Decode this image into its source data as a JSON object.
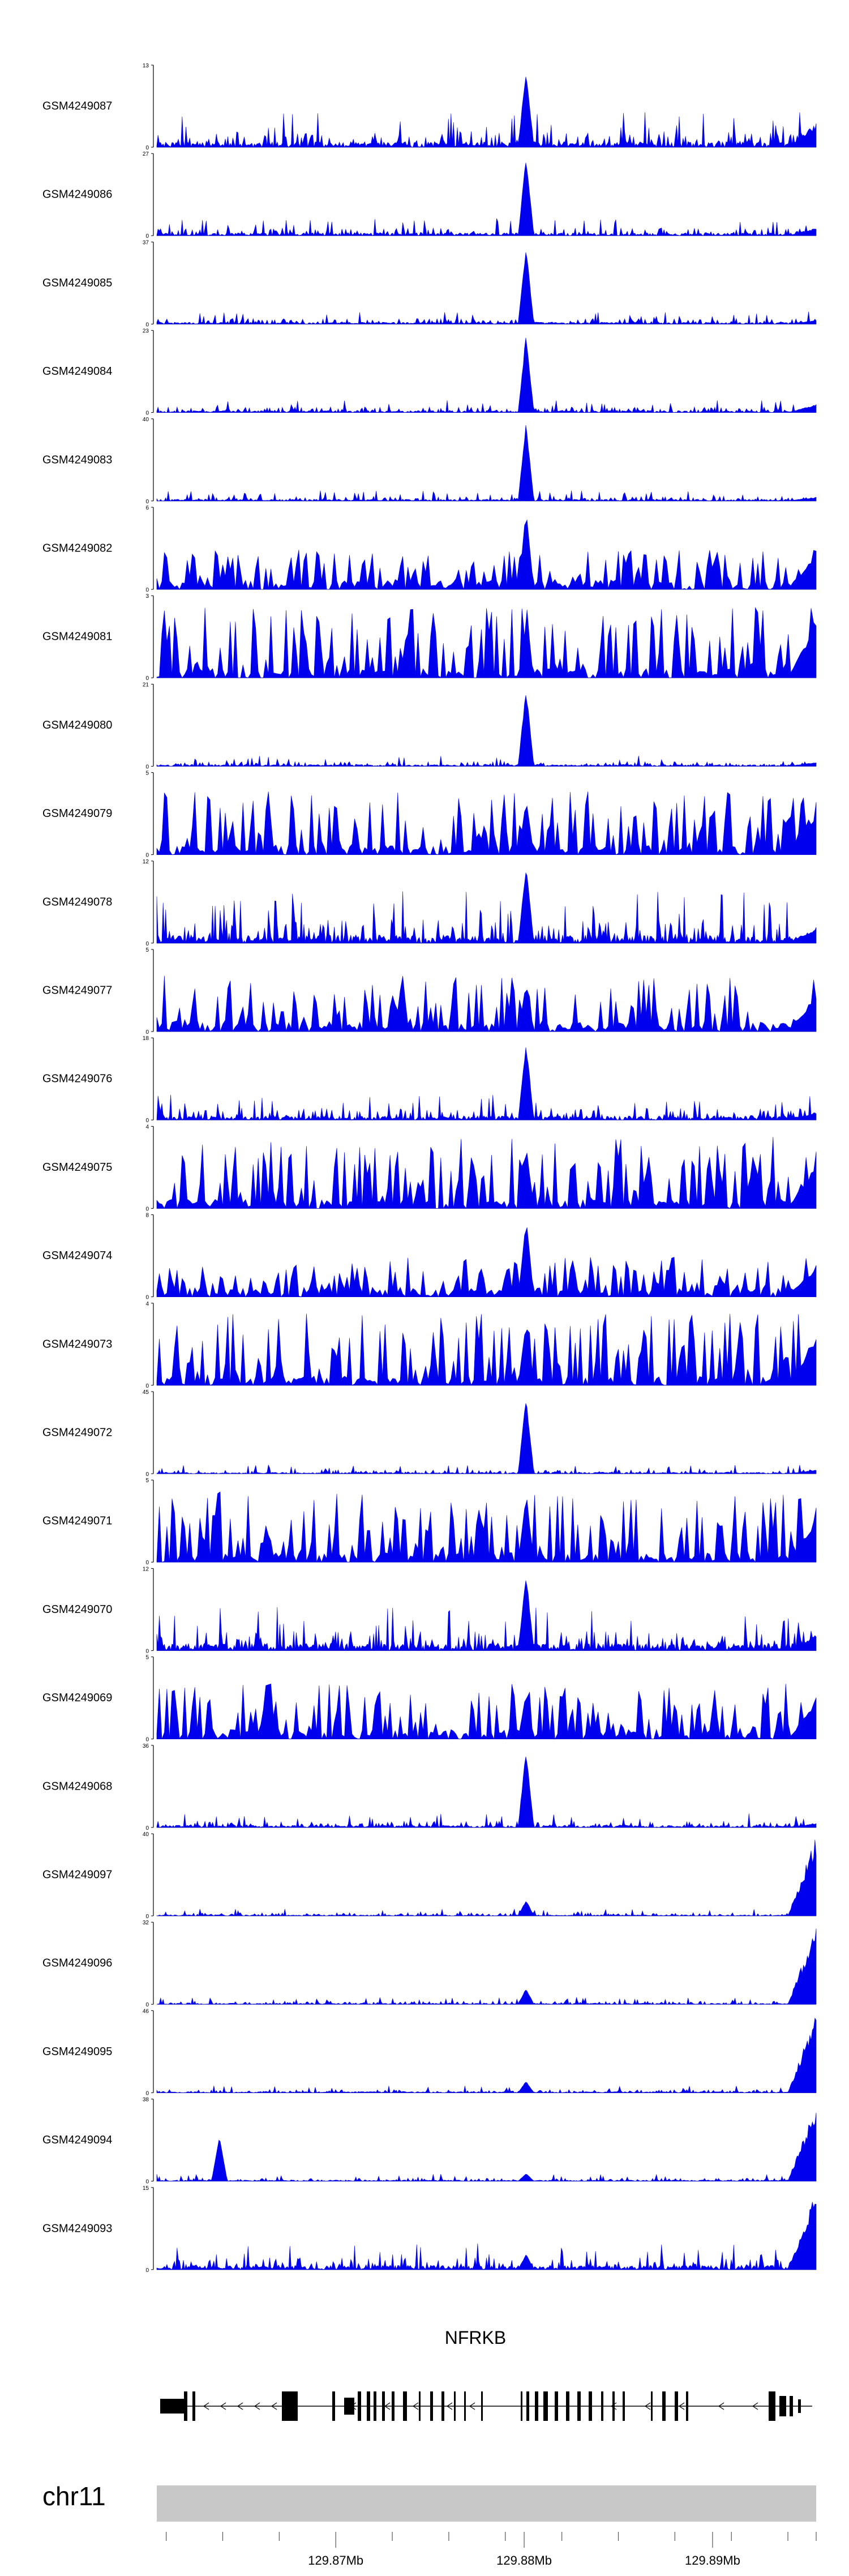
{
  "chart_data": {
    "type": "area",
    "genome": {
      "chromosome": "chr11",
      "x_range_mb": [
        129.8605,
        129.8955
      ],
      "ticks": [
        {
          "label": "",
          "value": 129.861
        },
        {
          "label": "",
          "value": 129.864
        },
        {
          "label": "",
          "value": 129.867
        },
        {
          "label": "129.87Mb",
          "value": 129.87
        },
        {
          "label": "",
          "value": 129.873
        },
        {
          "label": "",
          "value": 129.876
        },
        {
          "label": "",
          "value": 129.879
        },
        {
          "label": "129.88Mb",
          "value": 129.88
        },
        {
          "label": "",
          "value": 129.882
        },
        {
          "label": "",
          "value": 129.885
        },
        {
          "label": "",
          "value": 129.888
        },
        {
          "label": "129.89Mb",
          "value": 129.89
        },
        {
          "label": "",
          "value": 129.891
        },
        {
          "label": "",
          "value": 129.894
        },
        {
          "label": "",
          "value": 129.8955
        }
      ]
    },
    "series": [
      {
        "name": "GSM4249087",
        "ymax": "13",
        "ymin": "0",
        "noise": 0.2,
        "peak": 1.0,
        "end": 0.3,
        "seed": 11,
        "lowcount": false
      },
      {
        "name": "GSM4249086",
        "ymax": "27",
        "ymin": "0",
        "noise": 0.1,
        "peak": 1.0,
        "end": 0.1,
        "seed": 12,
        "lowcount": false
      },
      {
        "name": "GSM4249085",
        "ymax": "37",
        "ymin": "0",
        "noise": 0.07,
        "peak": 1.0,
        "end": 0.05,
        "seed": 13,
        "lowcount": false
      },
      {
        "name": "GSM4249084",
        "ymax": "23",
        "ymin": "0",
        "noise": 0.07,
        "peak": 1.0,
        "end": 0.1,
        "seed": 14,
        "lowcount": false
      },
      {
        "name": "GSM4249083",
        "ymax": "40",
        "ymin": "0",
        "noise": 0.06,
        "peak": 1.0,
        "end": 0.05,
        "seed": 15,
        "lowcount": false
      },
      {
        "name": "GSM4249082",
        "ymax": "6",
        "ymin": "0",
        "noise": 0.5,
        "peak": 1.0,
        "end": 0.5,
        "seed": 16,
        "lowcount": true
      },
      {
        "name": "GSM4249081",
        "ymax": "3",
        "ymin": "0",
        "noise": 0.9,
        "peak": 0.7,
        "end": 0.7,
        "seed": 17,
        "lowcount": true
      },
      {
        "name": "GSM4249080",
        "ymax": "21",
        "ymin": "0",
        "noise": 0.06,
        "peak": 1.0,
        "end": 0.05,
        "seed": 18,
        "lowcount": false
      },
      {
        "name": "GSM4249079",
        "ymax": "5",
        "ymin": "0",
        "noise": 0.8,
        "peak": 0.7,
        "end": 0.6,
        "seed": 19,
        "lowcount": true
      },
      {
        "name": "GSM4249078",
        "ymax": "12",
        "ymin": "0",
        "noise": 0.3,
        "peak": 1.0,
        "end": 0.2,
        "seed": 20,
        "lowcount": false
      },
      {
        "name": "GSM4249077",
        "ymax": "5",
        "ymin": "0",
        "noise": 0.7,
        "peak": 0.6,
        "end": 0.5,
        "seed": 21,
        "lowcount": true
      },
      {
        "name": "GSM4249076",
        "ymax": "18",
        "ymin": "0",
        "noise": 0.15,
        "peak": 1.0,
        "end": 0.1,
        "seed": 22,
        "lowcount": false
      },
      {
        "name": "GSM4249075",
        "ymax": "4",
        "ymin": "0",
        "noise": 0.9,
        "peak": 0.8,
        "end": 0.6,
        "seed": 23,
        "lowcount": true
      },
      {
        "name": "GSM4249074",
        "ymax": "8",
        "ymin": "0",
        "noise": 0.5,
        "peak": 1.0,
        "end": 0.4,
        "seed": 24,
        "lowcount": true
      },
      {
        "name": "GSM4249073",
        "ymax": "4",
        "ymin": "0",
        "noise": 0.9,
        "peak": 0.8,
        "end": 0.6,
        "seed": 25,
        "lowcount": true
      },
      {
        "name": "GSM4249072",
        "ymax": "45",
        "ymin": "0",
        "noise": 0.05,
        "peak": 1.0,
        "end": 0.05,
        "seed": 26,
        "lowcount": false
      },
      {
        "name": "GSM4249071",
        "ymax": "5",
        "ymin": "0",
        "noise": 0.9,
        "peak": 0.9,
        "end": 0.6,
        "seed": 27,
        "lowcount": true
      },
      {
        "name": "GSM4249070",
        "ymax": "12",
        "ymin": "0",
        "noise": 0.25,
        "peak": 1.0,
        "end": 0.2,
        "seed": 28,
        "lowcount": false
      },
      {
        "name": "GSM4249069",
        "ymax": "5",
        "ymin": "0",
        "noise": 0.7,
        "peak": 0.6,
        "end": 0.5,
        "seed": 29,
        "lowcount": true
      },
      {
        "name": "GSM4249068",
        "ymax": "36",
        "ymin": "0",
        "noise": 0.08,
        "peak": 1.0,
        "end": 0.05,
        "seed": 30,
        "lowcount": false
      },
      {
        "name": "GSM4249097",
        "ymax": "40",
        "ymin": "0",
        "noise": 0.04,
        "peak": 0.2,
        "end": 1.0,
        "seed": 31,
        "lowcount": false
      },
      {
        "name": "GSM4249096",
        "ymax": "32",
        "ymin": "0",
        "noise": 0.04,
        "peak": 0.2,
        "end": 1.0,
        "seed": 32,
        "lowcount": false
      },
      {
        "name": "GSM4249095",
        "ymax": "46",
        "ymin": "0",
        "noise": 0.04,
        "peak": 0.15,
        "end": 1.0,
        "seed": 33,
        "lowcount": false
      },
      {
        "name": "GSM4249094",
        "ymax": "38",
        "ymin": "0",
        "noise": 0.04,
        "peak": 0.1,
        "end": 1.0,
        "seed": 34,
        "lowcount": false,
        "extra_peak": 0.55
      },
      {
        "name": "GSM4249093",
        "ymax": "15",
        "ymin": "0",
        "noise": 0.15,
        "peak": 0.2,
        "end": 1.0,
        "seed": 35,
        "lowcount": false
      }
    ],
    "gene": {
      "name": "NFRKB"
    },
    "colors": {
      "signal": "#0000ee",
      "gene": "#000000",
      "ideogram": "#c8c8c8"
    }
  }
}
